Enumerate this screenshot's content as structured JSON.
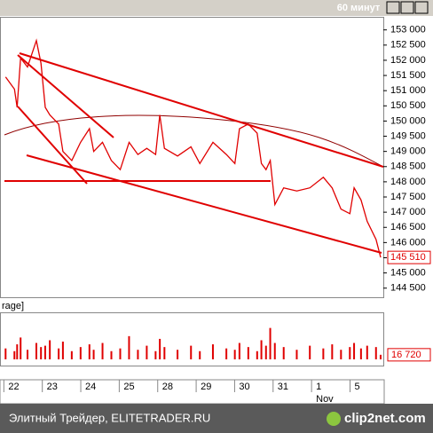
{
  "window_title": "60 минут",
  "indicator_label": "rage]",
  "footer": "Элитный Трейдер, ELITETRADER.RU",
  "logo": "clip2net.com",
  "chart_data": [
    {
      "type": "line",
      "color": "#e00000",
      "x": [
        -0.07,
        0.16,
        0.23,
        0.32,
        0.5,
        0.73,
        0.85,
        0.96,
        1.08,
        1.31,
        1.42,
        1.65,
        1.88,
        2.11,
        2.22,
        2.45,
        2.68,
        2.91,
        3.14,
        3.37,
        3.6,
        3.83,
        3.94,
        4.06,
        4.4,
        4.75,
        4.98,
        5.32,
        5.67,
        5.89,
        6.01,
        6.24,
        6.47,
        6.58,
        6.7,
        6.81,
        6.93,
        7.16,
        7.5,
        7.84,
        8.19,
        8.42,
        8.65,
        8.88,
        8.99,
        9.17,
        9.33,
        9.56,
        9.68
      ],
      "values": [
        151450,
        151050,
        150450,
        152070,
        151780,
        152650,
        151900,
        150450,
        150200,
        149900,
        149000,
        148700,
        149300,
        149750,
        149000,
        149300,
        148700,
        148400,
        149300,
        148900,
        149100,
        148900,
        150200,
        149100,
        148850,
        149150,
        148600,
        149300,
        148900,
        148600,
        149750,
        149900,
        149600,
        148600,
        148400,
        148700,
        147250,
        147800,
        147700,
        147800,
        148150,
        147800,
        147100,
        146950,
        147800,
        147400,
        146700,
        146100,
        145510
      ],
      "last_value_label": "145 510",
      "xlim": [
        -0.1,
        9.75
      ],
      "xticks": [
        {
          "value": 0,
          "label": "22"
        },
        {
          "value": 1,
          "label": "23"
        },
        {
          "value": 2,
          "label": "24"
        },
        {
          "value": 3,
          "label": "25"
        },
        {
          "value": 4,
          "label": "28"
        },
        {
          "value": 5,
          "label": "29"
        },
        {
          "value": 6,
          "label": "30"
        },
        {
          "value": 7,
          "label": "31"
        },
        {
          "value": 8,
          "label": "1"
        },
        {
          "value": 9,
          "label": "5"
        }
      ],
      "month_label": "Nov",
      "ylim": [
        144200,
        153400
      ],
      "yticks": [
        {
          "value": 144500,
          "label": "144 500"
        },
        {
          "value": 145000,
          "label": "145 000"
        },
        {
          "value": 145500,
          "label": "145 500"
        },
        {
          "value": 146000,
          "label": "146 000"
        },
        {
          "value": 146500,
          "label": "146 500"
        },
        {
          "value": 147000,
          "label": "147 000"
        },
        {
          "value": 147500,
          "label": "147 500"
        },
        {
          "value": 148000,
          "label": "148 000"
        },
        {
          "value": 148500,
          "label": "148 500"
        },
        {
          "value": 149000,
          "label": "149 000"
        },
        {
          "value": 149500,
          "label": "149 500"
        },
        {
          "value": 150000,
          "label": "150 000"
        },
        {
          "value": 150500,
          "label": "150 500"
        },
        {
          "value": 151000,
          "label": "151 000"
        },
        {
          "value": 151500,
          "label": "151 500"
        },
        {
          "value": 152000,
          "label": "152 000"
        },
        {
          "value": 152500,
          "label": "152 500"
        },
        {
          "value": 153000,
          "label": "153 000"
        }
      ]
    },
    {
      "type": "bar",
      "color": "#e00000",
      "x": [
        -0.07,
        0.16,
        0.23,
        0.32,
        0.5,
        0.73,
        0.85,
        0.96,
        1.08,
        1.31,
        1.42,
        1.65,
        1.88,
        2.11,
        2.22,
        2.45,
        2.68,
        2.91,
        3.14,
        3.37,
        3.6,
        3.83,
        3.94,
        4.06,
        4.4,
        4.75,
        4.98,
        5.32,
        5.67,
        5.89,
        6.01,
        6.24,
        6.47,
        6.58,
        6.7,
        6.81,
        6.93,
        7.16,
        7.5,
        7.84,
        8.19,
        8.42,
        8.65,
        8.88,
        8.99,
        9.17,
        9.33,
        9.56,
        9.68
      ],
      "values": [
        40000,
        30000,
        55000,
        80000,
        35000,
        60000,
        45000,
        50000,
        70000,
        40000,
        65000,
        30000,
        45000,
        55000,
        35000,
        60000,
        30000,
        40000,
        85000,
        35000,
        50000,
        30000,
        75000,
        45000,
        35000,
        50000,
        30000,
        55000,
        40000,
        35000,
        60000,
        45000,
        30000,
        70000,
        50000,
        115000,
        60000,
        45000,
        35000,
        50000,
        40000,
        55000,
        35000,
        45000,
        60000,
        40000,
        50000,
        45000,
        16720
      ],
      "last_value_label": "16 720",
      "ylim": [
        0,
        130000
      ]
    }
  ]
}
